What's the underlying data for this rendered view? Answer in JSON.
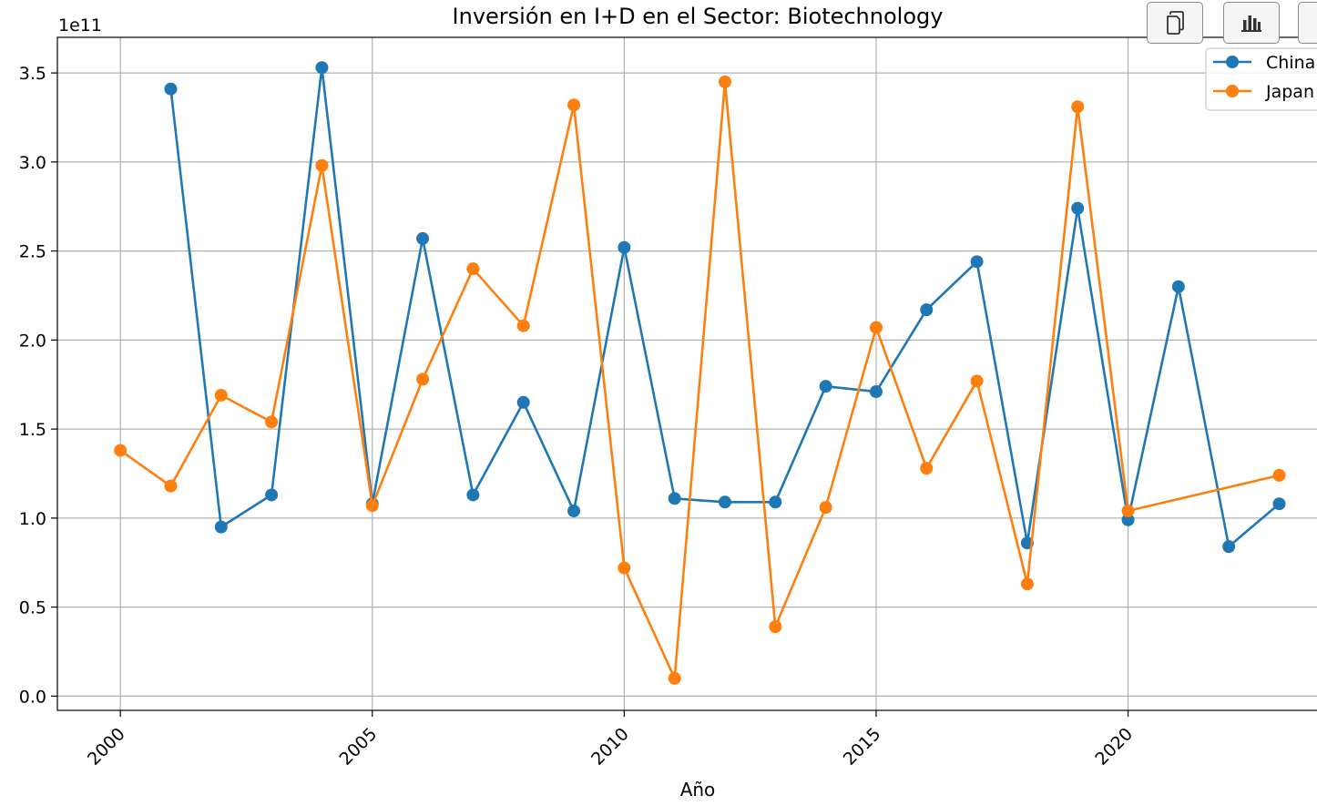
{
  "toolbar": {
    "buttons": [
      {
        "icon": "copy-icon"
      },
      {
        "icon": "bar-chart-icon"
      },
      {
        "icon": "more-icon"
      }
    ]
  },
  "colors": {
    "china": "#1f77b4",
    "japan": "#ff7f0e",
    "grid": "#b0b0b0",
    "axis": "#000000"
  },
  "chart_data": {
    "type": "line",
    "title": "Inversión en I+D en el Sector: Biotechnology",
    "xlabel": "Año",
    "ylabel": "",
    "offset_text": "1e11",
    "xlim": [
      1998.75,
      2023.75
    ],
    "ylim": [
      -0.08,
      3.7
    ],
    "grid": true,
    "legend_position": "top-right",
    "x_ticks": [
      2000,
      2005,
      2010,
      2015,
      2020
    ],
    "x_tick_labels": [
      "2000",
      "2005",
      "2010",
      "2015",
      "2020"
    ],
    "y_ticks": [
      0.0,
      0.5,
      1.0,
      1.5,
      2.0,
      2.5,
      3.0,
      3.5
    ],
    "y_tick_labels": [
      "0.0",
      "0.5",
      "1.0",
      "1.5",
      "2.0",
      "2.5",
      "3.0",
      "3.5"
    ],
    "series": [
      {
        "name": "China",
        "color": "#1f77b4",
        "x": [
          2001,
          2002,
          2003,
          2004,
          2005,
          2006,
          2007,
          2008,
          2009,
          2010,
          2011,
          2012,
          2013,
          2014,
          2015,
          2016,
          2017,
          2018,
          2019,
          2020,
          2021,
          2022,
          2023
        ],
        "y": [
          3.41,
          0.95,
          1.13,
          3.53,
          1.08,
          2.57,
          1.13,
          1.65,
          1.04,
          2.52,
          1.11,
          1.09,
          1.09,
          1.74,
          1.71,
          2.17,
          2.44,
          0.86,
          2.74,
          0.99,
          2.3,
          0.84,
          1.08
        ]
      },
      {
        "name": "Japan",
        "color": "#ff7f0e",
        "x": [
          2000,
          2001,
          2002,
          2003,
          2004,
          2005,
          2006,
          2007,
          2008,
          2009,
          2010,
          2011,
          2012,
          2013,
          2014,
          2015,
          2016,
          2017,
          2018,
          2019,
          2020,
          2023
        ],
        "y": [
          1.38,
          1.18,
          1.69,
          1.54,
          2.98,
          1.07,
          1.78,
          2.4,
          2.08,
          3.32,
          0.72,
          0.1,
          3.45,
          0.39,
          1.06,
          2.07,
          1.28,
          1.77,
          0.63,
          3.31,
          1.04,
          1.24
        ]
      }
    ]
  }
}
